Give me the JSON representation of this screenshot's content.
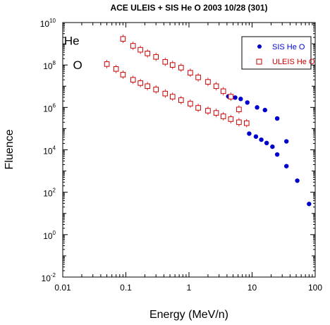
{
  "chart_data": {
    "type": "scatter",
    "title": "ACE ULEIS + SIS He O  2003 10/28 (301)",
    "xlabel": "Energy (MeV/n)",
    "ylabel": "Fluence",
    "x_scale": "log",
    "y_scale": "log",
    "xlim": [
      0.01,
      100
    ],
    "ylim": [
      0.01,
      10000000000
    ],
    "x_ticks": [
      {
        "value": 0.01,
        "label": "0.01"
      },
      {
        "value": 0.1,
        "label": "0.1"
      },
      {
        "value": 1,
        "label": "1"
      },
      {
        "value": 10,
        "label": "10"
      },
      {
        "value": 100,
        "label": "100"
      }
    ],
    "y_ticks": [
      {
        "value": 0.01,
        "base": "10",
        "exp": "-2"
      },
      {
        "value": 1,
        "base": "10",
        "exp": "0"
      },
      {
        "value": 100,
        "base": "10",
        "exp": "2"
      },
      {
        "value": 10000,
        "base": "10",
        "exp": "4"
      },
      {
        "value": 1000000,
        "base": "10",
        "exp": "6"
      },
      {
        "value": 100000000,
        "base": "10",
        "exp": "8"
      },
      {
        "value": 10000000000,
        "base": "10",
        "exp": "10"
      }
    ],
    "grid": false,
    "legend_position": "top-right",
    "annotations": [
      {
        "text": "He",
        "x": 0.0105,
        "y": 1400000000
      },
      {
        "text": "O",
        "x": 0.0145,
        "y": 100000000
      }
    ],
    "series": [
      {
        "name": "SIS He O",
        "species": "He",
        "marker": "filled-circle",
        "color": "#0000cc",
        "points": [
          [
            4.2,
            3300000
          ],
          [
            5.4,
            2900000
          ],
          [
            6.6,
            2500000
          ],
          [
            8.4,
            1700000
          ],
          [
            12,
            1000000
          ],
          [
            16,
            750000
          ],
          [
            25,
            300000
          ],
          [
            35,
            25000
          ]
        ]
      },
      {
        "name": "SIS He O",
        "species": "O",
        "marker": "filled-circle",
        "color": "#0000cc",
        "points": [
          [
            9,
            58000
          ],
          [
            11.5,
            42000
          ],
          [
            14,
            30000
          ],
          [
            17,
            21000
          ],
          [
            21,
            14000
          ],
          [
            25,
            6000
          ],
          [
            35,
            1700
          ],
          [
            52,
            350
          ],
          [
            80,
            28
          ]
        ]
      },
      {
        "name": "ULEIS He O",
        "species": "He",
        "marker": "open-square",
        "color": "#cc0000",
        "points": [
          [
            0.09,
            1700000000
          ],
          [
            0.13,
            800000000
          ],
          [
            0.17,
            520000000
          ],
          [
            0.22,
            350000000
          ],
          [
            0.3,
            240000000
          ],
          [
            0.42,
            140000000
          ],
          [
            0.55,
            100000000
          ],
          [
            0.75,
            75000000
          ],
          [
            1.05,
            43000000
          ],
          [
            1.4,
            26000000
          ],
          [
            2,
            16000000
          ],
          [
            2.7,
            10000000
          ],
          [
            3.5,
            5800000
          ],
          [
            4.6,
            3200000
          ],
          [
            6.2,
            800000
          ]
        ]
      },
      {
        "name": "ULEIS He O",
        "species": "O",
        "marker": "open-square",
        "color": "#cc0000",
        "points": [
          [
            0.05,
            110000000
          ],
          [
            0.07,
            65000000
          ],
          [
            0.09,
            35000000
          ],
          [
            0.13,
            20000000
          ],
          [
            0.17,
            14000000
          ],
          [
            0.22,
            10000000
          ],
          [
            0.3,
            7000000
          ],
          [
            0.42,
            4500000
          ],
          [
            0.55,
            3200000
          ],
          [
            0.75,
            2200000
          ],
          [
            1.05,
            1500000
          ],
          [
            1.4,
            950000
          ],
          [
            2,
            700000
          ],
          [
            2.7,
            550000
          ],
          [
            3.5,
            380000
          ],
          [
            4.6,
            280000
          ],
          [
            6.2,
            200000
          ],
          [
            8.2,
            180000
          ]
        ]
      }
    ]
  }
}
